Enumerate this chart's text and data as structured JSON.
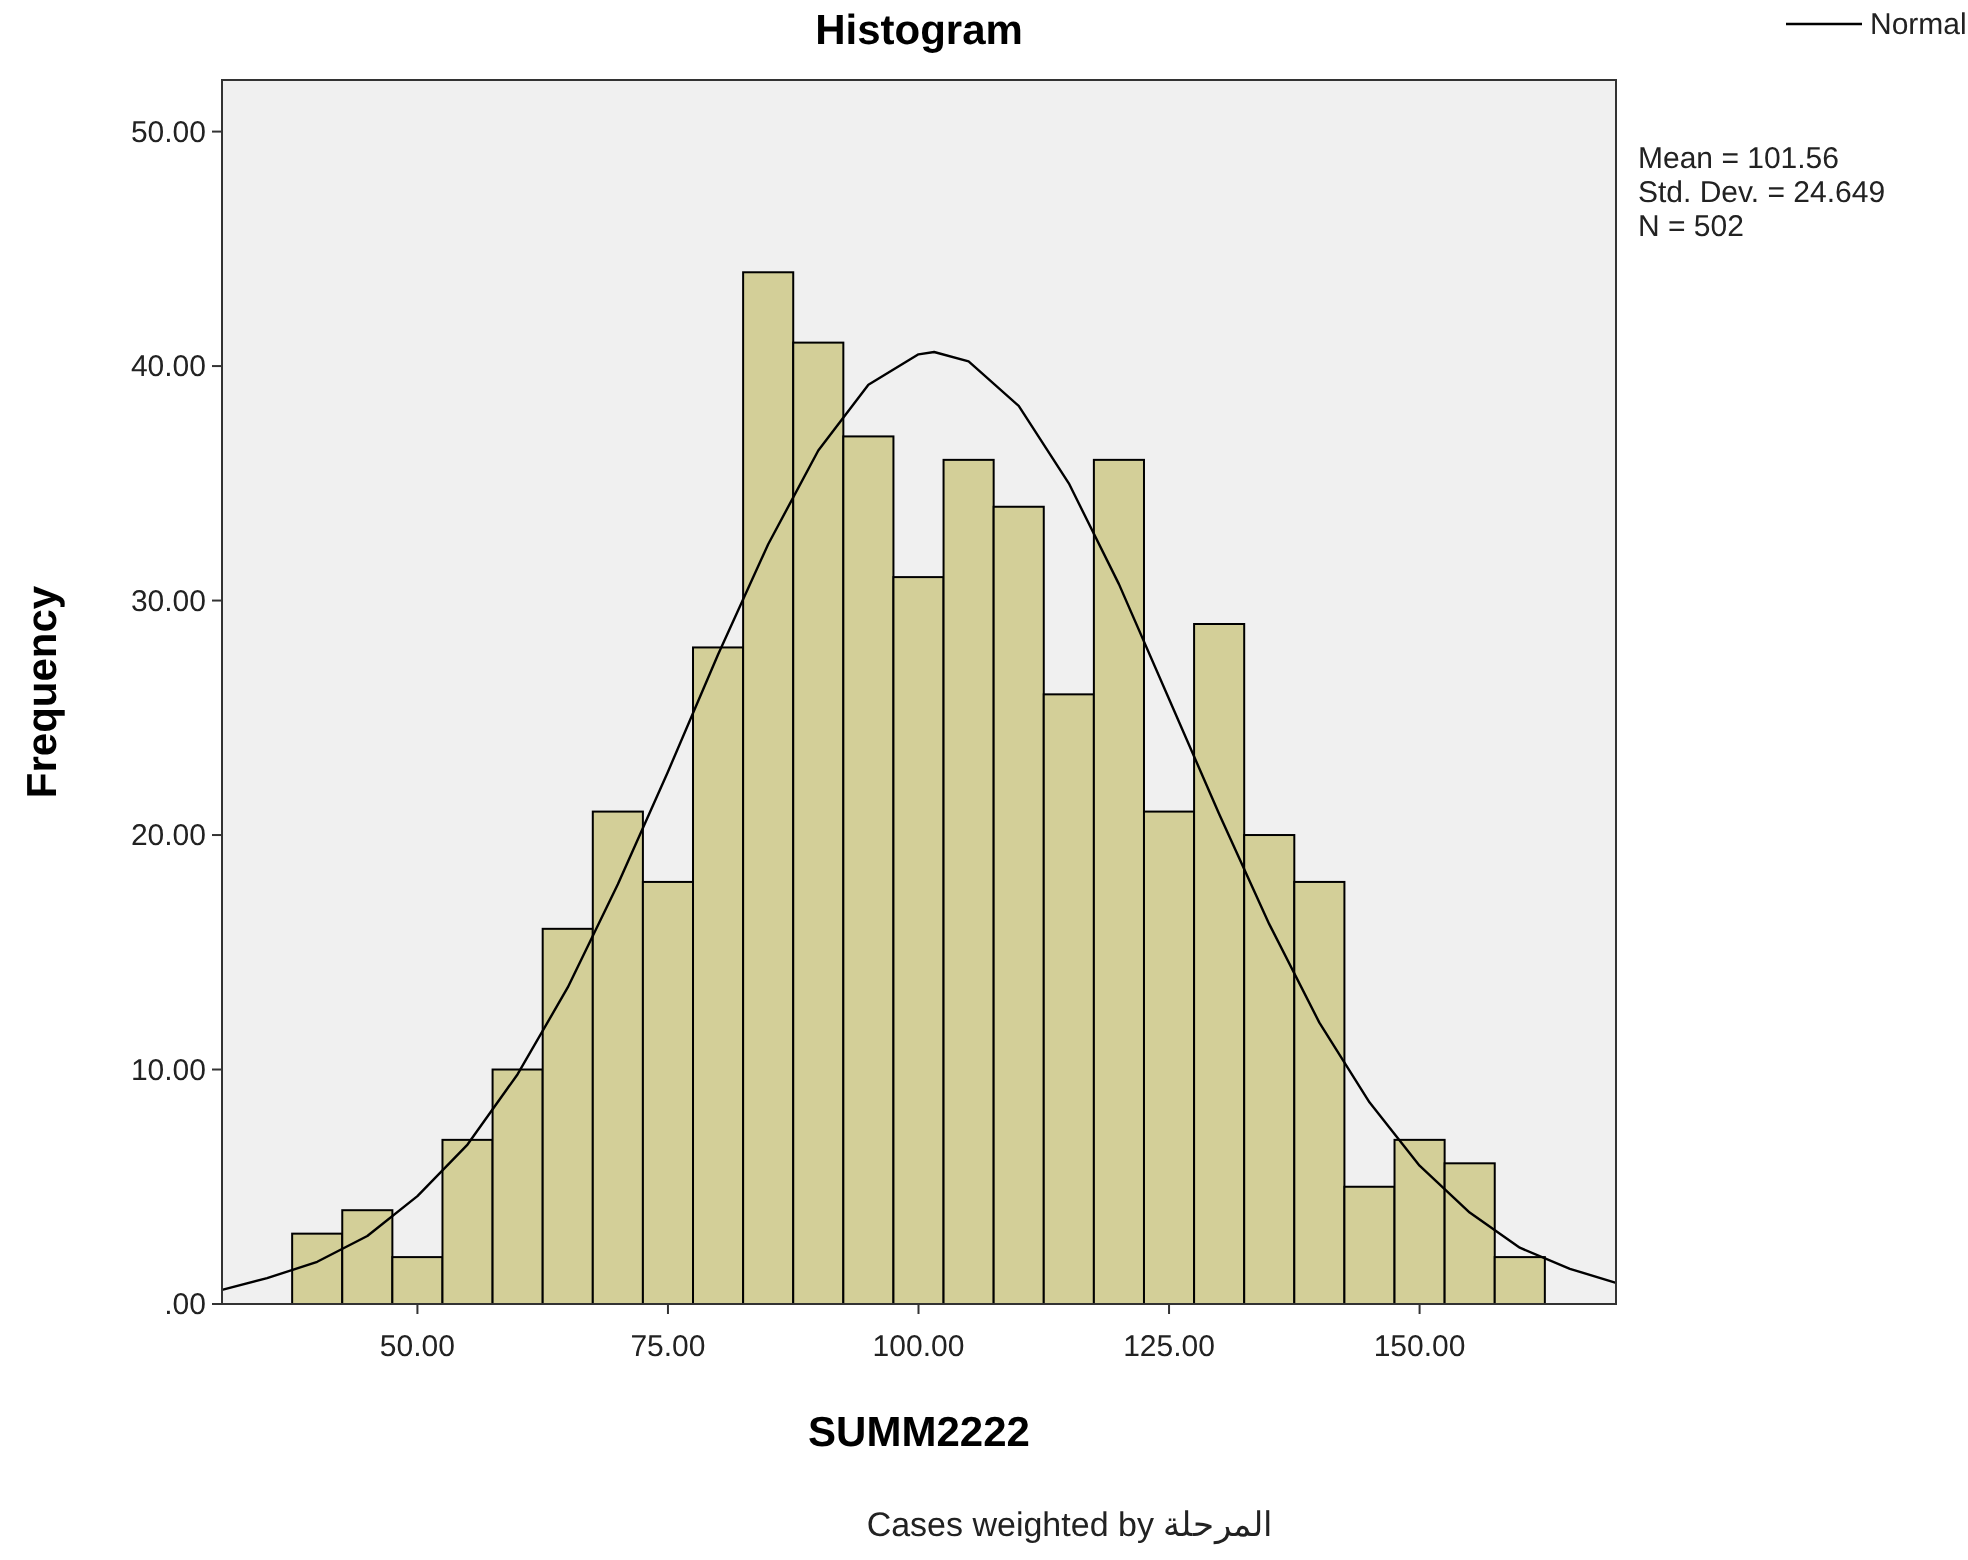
{
  "chart_data": {
    "type": "histogram",
    "title": "Histogram",
    "xlabel": "SUMM2222",
    "ylabel": "Frequency",
    "bins": [
      37.5,
      42.5,
      47.5,
      52.5,
      57.5,
      62.5,
      67.5,
      72.5,
      77.5,
      82.5,
      87.5,
      92.5,
      97.5,
      102.5,
      107.5,
      112.5,
      117.5,
      122.5,
      127.5,
      132.5,
      137.5,
      142.5,
      147.5,
      152.5,
      157.5,
      162.5
    ],
    "series": [
      {
        "color": "#d3cf98",
        "values": [
          3,
          4,
          2,
          7,
          10,
          16,
          21,
          18,
          28,
          44,
          41,
          37,
          31,
          36,
          34,
          26,
          36,
          21,
          29,
          20,
          18,
          5,
          7,
          6,
          2
        ]
      },
      {
        "type": "line",
        "name": "Normal",
        "color": "#000000",
        "x": [
          30.5,
          35,
          40,
          45,
          50,
          55,
          60,
          65,
          70,
          75,
          80,
          85,
          90,
          95,
          100,
          101.56,
          105,
          110,
          115,
          120,
          125,
          130,
          135,
          140,
          145,
          150,
          155,
          160,
          165,
          169.6
        ],
        "values": [
          0.6,
          1.1,
          1.8,
          2.9,
          4.6,
          6.8,
          9.8,
          13.5,
          17.9,
          22.7,
          27.7,
          32.4,
          36.4,
          39.2,
          40.5,
          40.6,
          40.2,
          38.3,
          35,
          30.7,
          25.8,
          20.9,
          16.2,
          12,
          8.6,
          5.9,
          3.9,
          2.4,
          1.5,
          0.9
        ]
      }
    ],
    "xlim": [
      30.5,
      169.6
    ],
    "ylim": [
      0,
      52.2
    ],
    "xticks": [
      {
        "value": 50,
        "label": "50.00"
      },
      {
        "value": 75,
        "label": "75.00"
      },
      {
        "value": 100,
        "label": "100.00"
      },
      {
        "value": 125,
        "label": "125.00"
      },
      {
        "value": 150,
        "label": "150.00"
      }
    ],
    "yticks": [
      {
        "value": 0,
        "label": ".00"
      },
      {
        "value": 10,
        "label": "10.00"
      },
      {
        "value": 20,
        "label": "20.00"
      },
      {
        "value": 30,
        "label": "30.00"
      },
      {
        "value": 40,
        "label": "40.00"
      },
      {
        "value": 50,
        "label": "50.00"
      }
    ],
    "legend": "top right",
    "annotations": [
      "Mean = 101.56",
      "Std. Dev. = 24.649",
      "N = 502",
      "Cases weighted by المرحلة"
    ]
  }
}
